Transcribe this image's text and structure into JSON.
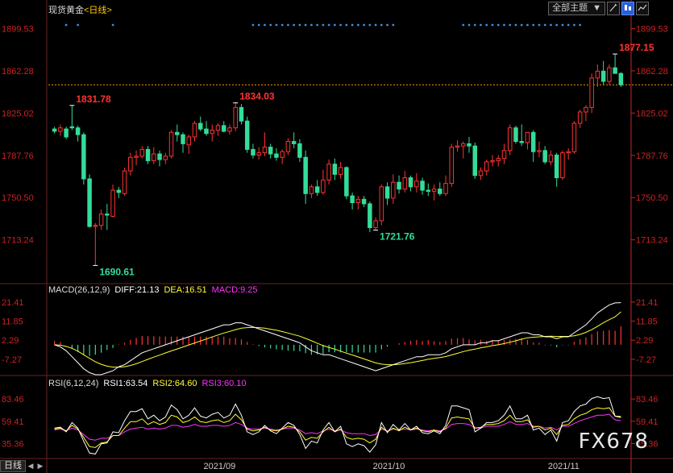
{
  "header": {
    "symbol": "现货黄金",
    "period": "<日线>"
  },
  "toolbar": {
    "topic_select": "全部主题",
    "dropdown_arrow": "▼"
  },
  "bottom": {
    "period_tab": "日线"
  },
  "watermark": "FX678",
  "colors": {
    "up": "#ff3333",
    "down": "#33dd99",
    "grid": "#6e1f1f",
    "axis": "#cc2222",
    "dotted": "#ff9900",
    "dots": "#3f8fd9",
    "price_label": "#dddddd",
    "high_label": "#ff3333",
    "low_label": "#33dd99",
    "diff": "#ffffff",
    "dea": "#ffff33",
    "macd": "#ff33ff",
    "rsi1": "#ffffff",
    "rsi2": "#ffff33",
    "rsi3": "#ff33ff"
  },
  "chart_data": [
    {
      "type": "candlestick",
      "title": "现货黄金<日线>",
      "ylim": [
        1676,
        1912
      ],
      "y_ticks": [
        "1899.53",
        "1862.28",
        "1825.02",
        "1787.76",
        "1750.50",
        "1713.24"
      ],
      "x_ticks": [
        "2021/09",
        "2021/10",
        "2021/11"
      ],
      "annotations": {
        "high1": "1831.78",
        "high2": "1834.03",
        "high3": "1877.15",
        "low1": "1690.61",
        "low2": "1721.76"
      },
      "last_price": 1850,
      "candles": [
        [
          1811,
          1813,
          1807,
          1809
        ],
        [
          1809,
          1815,
          1805,
          1812
        ],
        [
          1811,
          1813,
          1802,
          1804
        ],
        [
          1813,
          1831.78,
          1810,
          1812
        ],
        [
          1812,
          1814,
          1800,
          1806
        ],
        [
          1806,
          1808,
          1762,
          1767
        ],
        [
          1767,
          1771,
          1724,
          1725
        ],
        [
          1725,
          1728,
          1690.61,
          1726
        ],
        [
          1726,
          1740,
          1722,
          1736
        ],
        [
          1736,
          1745,
          1722,
          1735
        ],
        [
          1734,
          1762,
          1733,
          1757
        ],
        [
          1757,
          1760,
          1750,
          1755
        ],
        [
          1754,
          1777,
          1752,
          1774
        ],
        [
          1774,
          1790,
          1770,
          1786
        ],
        [
          1786,
          1792,
          1779,
          1787
        ],
        [
          1787,
          1796,
          1785,
          1793
        ],
        [
          1793,
          1796,
          1780,
          1783
        ],
        [
          1783,
          1795,
          1780,
          1789
        ],
        [
          1789,
          1792,
          1778,
          1784
        ],
        [
          1784,
          1790,
          1780,
          1787
        ],
        [
          1787,
          1810,
          1785,
          1808
        ],
        [
          1808,
          1815,
          1800,
          1806
        ],
        [
          1806,
          1808,
          1790,
          1798
        ],
        [
          1797,
          1806,
          1789,
          1804
        ],
        [
          1804,
          1818,
          1800,
          1816
        ],
        [
          1816,
          1822,
          1809,
          1811
        ],
        [
          1811,
          1818,
          1805,
          1807
        ],
        [
          1807,
          1815,
          1800,
          1810
        ],
        [
          1810,
          1816,
          1805,
          1814
        ],
        [
          1814,
          1818,
          1808,
          1809
        ],
        [
          1809,
          1815,
          1806,
          1812
        ],
        [
          1812,
          1834.03,
          1809,
          1830
        ],
        [
          1830,
          1833,
          1815,
          1818
        ],
        [
          1818,
          1822,
          1790,
          1793
        ],
        [
          1793,
          1798,
          1785,
          1788
        ],
        [
          1788,
          1795,
          1784,
          1790
        ],
        [
          1790,
          1808,
          1787,
          1795
        ],
        [
          1795,
          1798,
          1785,
          1789
        ],
        [
          1789,
          1794,
          1783,
          1786
        ],
        [
          1786,
          1793,
          1780,
          1791
        ],
        [
          1791,
          1803,
          1788,
          1800
        ],
        [
          1800,
          1808,
          1794,
          1798
        ],
        [
          1798,
          1802,
          1782,
          1786
        ],
        [
          1786,
          1792,
          1745,
          1754
        ],
        [
          1754,
          1762,
          1750,
          1760
        ],
        [
          1760,
          1766,
          1752,
          1755
        ],
        [
          1755,
          1775,
          1753,
          1766
        ],
        [
          1766,
          1784,
          1762,
          1780
        ],
        [
          1780,
          1785,
          1766,
          1771
        ],
        [
          1771,
          1782,
          1767,
          1777
        ],
        [
          1777,
          1778,
          1749,
          1752
        ],
        [
          1752,
          1755,
          1740,
          1746
        ],
        [
          1746,
          1752,
          1740,
          1749
        ],
        [
          1749,
          1752,
          1742,
          1745
        ],
        [
          1745,
          1747,
          1720,
          1724
        ],
        [
          1724,
          1733,
          1721.76,
          1730
        ],
        [
          1730,
          1762,
          1726,
          1760
        ],
        [
          1760,
          1764,
          1744,
          1750
        ],
        [
          1750,
          1771,
          1745,
          1764
        ],
        [
          1764,
          1770,
          1754,
          1758
        ],
        [
          1758,
          1774,
          1755,
          1768
        ],
        [
          1768,
          1770,
          1756,
          1760
        ],
        [
          1760,
          1772,
          1755,
          1765
        ],
        [
          1765,
          1768,
          1753,
          1757
        ],
        [
          1757,
          1763,
          1752,
          1756
        ],
        [
          1756,
          1762,
          1748,
          1758
        ],
        [
          1758,
          1764,
          1752,
          1754
        ],
        [
          1754,
          1770,
          1752,
          1763
        ],
        [
          1763,
          1798,
          1760,
          1795
        ],
        [
          1795,
          1801,
          1791,
          1796
        ],
        [
          1796,
          1800,
          1785,
          1798
        ],
        [
          1798,
          1804,
          1790,
          1796
        ],
        [
          1796,
          1799,
          1767,
          1770
        ],
        [
          1770,
          1777,
          1766,
          1774
        ],
        [
          1774,
          1784,
          1770,
          1782
        ],
        [
          1782,
          1788,
          1778,
          1783
        ],
        [
          1783,
          1788,
          1778,
          1785
        ],
        [
          1785,
          1798,
          1780,
          1792
        ],
        [
          1792,
          1815,
          1788,
          1812
        ],
        [
          1812,
          1814,
          1798,
          1800
        ],
        [
          1800,
          1815,
          1796,
          1799
        ],
        [
          1799,
          1808,
          1793,
          1808
        ],
        [
          1808,
          1810,
          1782,
          1791
        ],
        [
          1791,
          1800,
          1786,
          1792
        ],
        [
          1792,
          1796,
          1780,
          1782
        ],
        [
          1782,
          1792,
          1779,
          1788
        ],
        [
          1788,
          1790,
          1760,
          1768
        ],
        [
          1768,
          1792,
          1766,
          1790
        ],
        [
          1790,
          1794,
          1784,
          1791
        ],
        [
          1791,
          1818,
          1789,
          1816
        ],
        [
          1816,
          1828,
          1812,
          1826
        ],
        [
          1826,
          1832,
          1818,
          1830
        ],
        [
          1830,
          1860,
          1825,
          1856
        ],
        [
          1856,
          1868,
          1848,
          1862
        ],
        [
          1862,
          1871,
          1850,
          1853
        ],
        [
          1853,
          1868,
          1850,
          1865
        ],
        [
          1865,
          1877.15,
          1862,
          1860
        ],
        [
          1860,
          1861,
          1848,
          1850
        ]
      ]
    },
    {
      "type": "macd",
      "title": "MACD(26,12,9)",
      "series_labels": {
        "diff": "DIFF:21.13",
        "dea": "DEA:16.51",
        "macd": "MACD:9.25"
      },
      "ylim": [
        -15,
        25
      ],
      "y_ticks": [
        "21.41",
        "11.85",
        "2.29",
        "-7.27"
      ],
      "diff": [
        0,
        -1,
        -3,
        -6,
        -9,
        -12,
        -14,
        -15,
        -15,
        -14,
        -13,
        -11,
        -10,
        -8,
        -6,
        -4,
        -3,
        -2,
        -1,
        0,
        1,
        2,
        3,
        4,
        5,
        6,
        7,
        8,
        9,
        10,
        10,
        11,
        11,
        10,
        9,
        8,
        7,
        6,
        5,
        4,
        3,
        2,
        1,
        -1,
        -3,
        -4,
        -5,
        -5,
        -6,
        -7,
        -8,
        -9,
        -10,
        -11,
        -12,
        -13,
        -12,
        -11,
        -10,
        -9,
        -8,
        -7,
        -6,
        -6,
        -5,
        -5,
        -5,
        -4,
        -2,
        -1,
        0,
        0,
        0,
        1,
        1,
        2,
        2,
        3,
        4,
        5,
        6,
        6,
        5,
        5,
        4,
        4,
        3,
        4,
        4,
        6,
        8,
        10,
        13,
        16,
        18,
        20,
        21,
        21.13
      ],
      "dea": [
        0,
        -0.2,
        -0.8,
        -1.8,
        -3.2,
        -5,
        -6.8,
        -8.5,
        -9.8,
        -10.7,
        -11.2,
        -11.2,
        -11,
        -10.4,
        -9.5,
        -8.4,
        -7.3,
        -6.2,
        -5.2,
        -4.1,
        -3.1,
        -2.1,
        -1.1,
        -0.1,
        0.9,
        1.9,
        2.9,
        3.9,
        4.9,
        5.9,
        6.7,
        7.6,
        8.3,
        8.6,
        8.7,
        8.6,
        8.3,
        7.8,
        7.3,
        6.6,
        5.9,
        5.1,
        4.3,
        3.2,
        2,
        0.8,
        -0.4,
        -1.3,
        -2.2,
        -3.2,
        -4.2,
        -5.1,
        -6.1,
        -7.1,
        -8.1,
        -9.1,
        -9.7,
        -10,
        -10,
        -9.8,
        -9.4,
        -9,
        -8.4,
        -7.9,
        -7.3,
        -6.8,
        -6.4,
        -5.9,
        -5.1,
        -4.3,
        -3.4,
        -2.7,
        -2.2,
        -1.5,
        -1,
        -0.4,
        0,
        0.6,
        1.3,
        2,
        2.8,
        3.5,
        3.8,
        4,
        4.2,
        4.3,
        4.2,
        4.2,
        4.2,
        4.5,
        5.2,
        6.2,
        7.6,
        9.3,
        11,
        12.6,
        14,
        16.51
      ],
      "hist": [
        2,
        1.4,
        0,
        -2,
        -3.6,
        -5,
        -5.6,
        -5,
        -4,
        -2.6,
        -1.6,
        0.2,
        1,
        2.4,
        3.5,
        4.4,
        4.3,
        4.2,
        4.2,
        4.1,
        4.1,
        4.1,
        4.1,
        4.1,
        4.1,
        4.1,
        4.1,
        4.1,
        4.1,
        4.1,
        3.3,
        3.4,
        2.7,
        1.4,
        0.3,
        -0.6,
        -1.3,
        -1.8,
        -2.3,
        -2.6,
        -2.9,
        -3.1,
        -3.3,
        -4.2,
        -5,
        -4.8,
        -4.6,
        -3.7,
        -3.8,
        -3.8,
        -3.8,
        -3.9,
        -3.9,
        -3.9,
        -3.9,
        -3.9,
        -2.3,
        -1,
        0,
        0.8,
        1.4,
        2,
        2.4,
        1.9,
        2.3,
        1.8,
        1.4,
        1.9,
        3.1,
        3.3,
        3.4,
        2.7,
        2.2,
        2.5,
        2,
        2.4,
        2,
        2.4,
        2.7,
        3,
        3.2,
        2.5,
        1.2,
        1,
        -0.2,
        -0.3,
        -1.2,
        -0.2,
        -0.2,
        1.5,
        2.8,
        3.8,
        5.4,
        6.7,
        7,
        7.4,
        7,
        9.25
      ]
    },
    {
      "type": "rsi",
      "title": "RSI(6,12,24)",
      "series_labels": {
        "rsi1": "RSI1:63.54",
        "rsi2": "RSI2:64.60",
        "rsi3": "RSI3:60.10"
      },
      "ylim": [
        20,
        95
      ],
      "y_ticks": [
        "83.46",
        "59.41",
        "35.36"
      ],
      "rsi1": [
        52,
        53,
        48,
        58,
        52,
        38,
        25,
        24,
        35,
        36,
        48,
        47,
        60,
        70,
        70,
        73,
        62,
        66,
        60,
        64,
        77,
        72,
        62,
        66,
        74,
        65,
        63,
        67,
        69,
        63,
        66,
        78,
        66,
        48,
        45,
        48,
        55,
        49,
        46,
        52,
        58,
        55,
        45,
        30,
        38,
        36,
        50,
        58,
        48,
        54,
        35,
        32,
        35,
        33,
        26,
        34,
        58,
        47,
        56,
        50,
        57,
        50,
        54,
        47,
        46,
        49,
        46,
        55,
        76,
        76,
        74,
        72,
        48,
        52,
        58,
        58,
        60,
        66,
        76,
        62,
        62,
        66,
        50,
        52,
        45,
        50,
        38,
        58,
        60,
        70,
        76,
        78,
        84,
        86,
        84,
        85,
        65,
        63.54
      ],
      "rsi2": [
        51,
        52,
        49,
        55,
        51,
        42,
        32,
        31,
        36,
        37,
        44,
        44,
        52,
        59,
        59,
        62,
        56,
        59,
        56,
        58,
        66,
        64,
        58,
        60,
        64,
        59,
        58,
        60,
        61,
        58,
        60,
        67,
        61,
        51,
        49,
        50,
        53,
        50,
        49,
        51,
        54,
        53,
        48,
        39,
        42,
        41,
        48,
        53,
        48,
        51,
        42,
        40,
        41,
        40,
        36,
        40,
        53,
        48,
        52,
        49,
        53,
        50,
        52,
        49,
        48,
        50,
        48,
        52,
        63,
        64,
        63,
        62,
        52,
        53,
        56,
        56,
        57,
        60,
        66,
        59,
        59,
        61,
        53,
        54,
        50,
        52,
        45,
        55,
        56,
        62,
        66,
        68,
        72,
        74,
        73,
        74,
        65,
        64.6
      ],
      "rsi3": [
        50,
        51,
        49,
        52,
        50,
        45,
        40,
        39,
        41,
        41,
        44,
        44,
        48,
        51,
        52,
        53,
        51,
        52,
        51,
        52,
        55,
        55,
        53,
        54,
        56,
        54,
        54,
        55,
        55,
        54,
        55,
        58,
        56,
        52,
        51,
        51,
        52,
        51,
        50,
        51,
        52,
        52,
        50,
        46,
        47,
        46,
        49,
        51,
        49,
        50,
        47,
        46,
        46,
        46,
        44,
        45,
        51,
        49,
        51,
        50,
        51,
        50,
        51,
        50,
        49,
        50,
        49,
        51,
        56,
        57,
        57,
        56,
        52,
        52,
        54,
        54,
        54,
        56,
        59,
        56,
        56,
        57,
        54,
        54,
        52,
        53,
        50,
        54,
        54,
        57,
        60,
        62,
        64,
        66,
        66,
        67,
        61,
        60.1
      ]
    }
  ]
}
